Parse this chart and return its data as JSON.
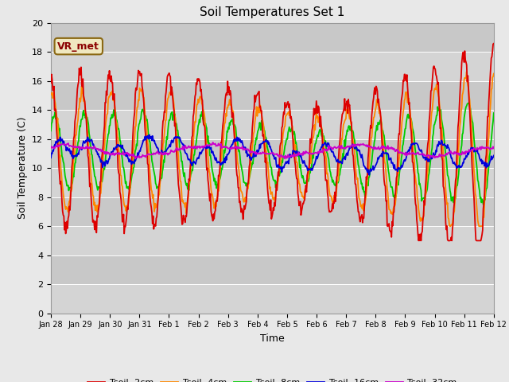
{
  "title": "Soil Temperatures Set 1",
  "xlabel": "Time",
  "ylabel": "Soil Temperature (C)",
  "ylim": [
    0,
    20
  ],
  "yticks": [
    0,
    2,
    4,
    6,
    8,
    10,
    12,
    14,
    16,
    18,
    20
  ],
  "annotation": "VR_met",
  "bg_color": "#e8e8e8",
  "plot_bg_color": "#d4d4d4",
  "stripe_color": "#c8c8c8",
  "line_colors": {
    "Tsoil -2cm": "#dd0000",
    "Tsoil -4cm": "#ff8800",
    "Tsoil -8cm": "#00cc00",
    "Tsoil -16cm": "#0000dd",
    "Tsoil -32cm": "#cc00cc"
  },
  "date_labels": [
    "Jan 28",
    "Jan 29",
    "Jan 30",
    "Jan 31",
    "Feb 1",
    "Feb 2",
    "Feb 3",
    "Feb 4",
    "Feb 5",
    "Feb 6",
    "Feb 7",
    "Feb 8",
    "Feb 9",
    "Feb 10",
    "Feb 11",
    "Feb 12"
  ],
  "n_days": 15,
  "points_per_day": 48
}
